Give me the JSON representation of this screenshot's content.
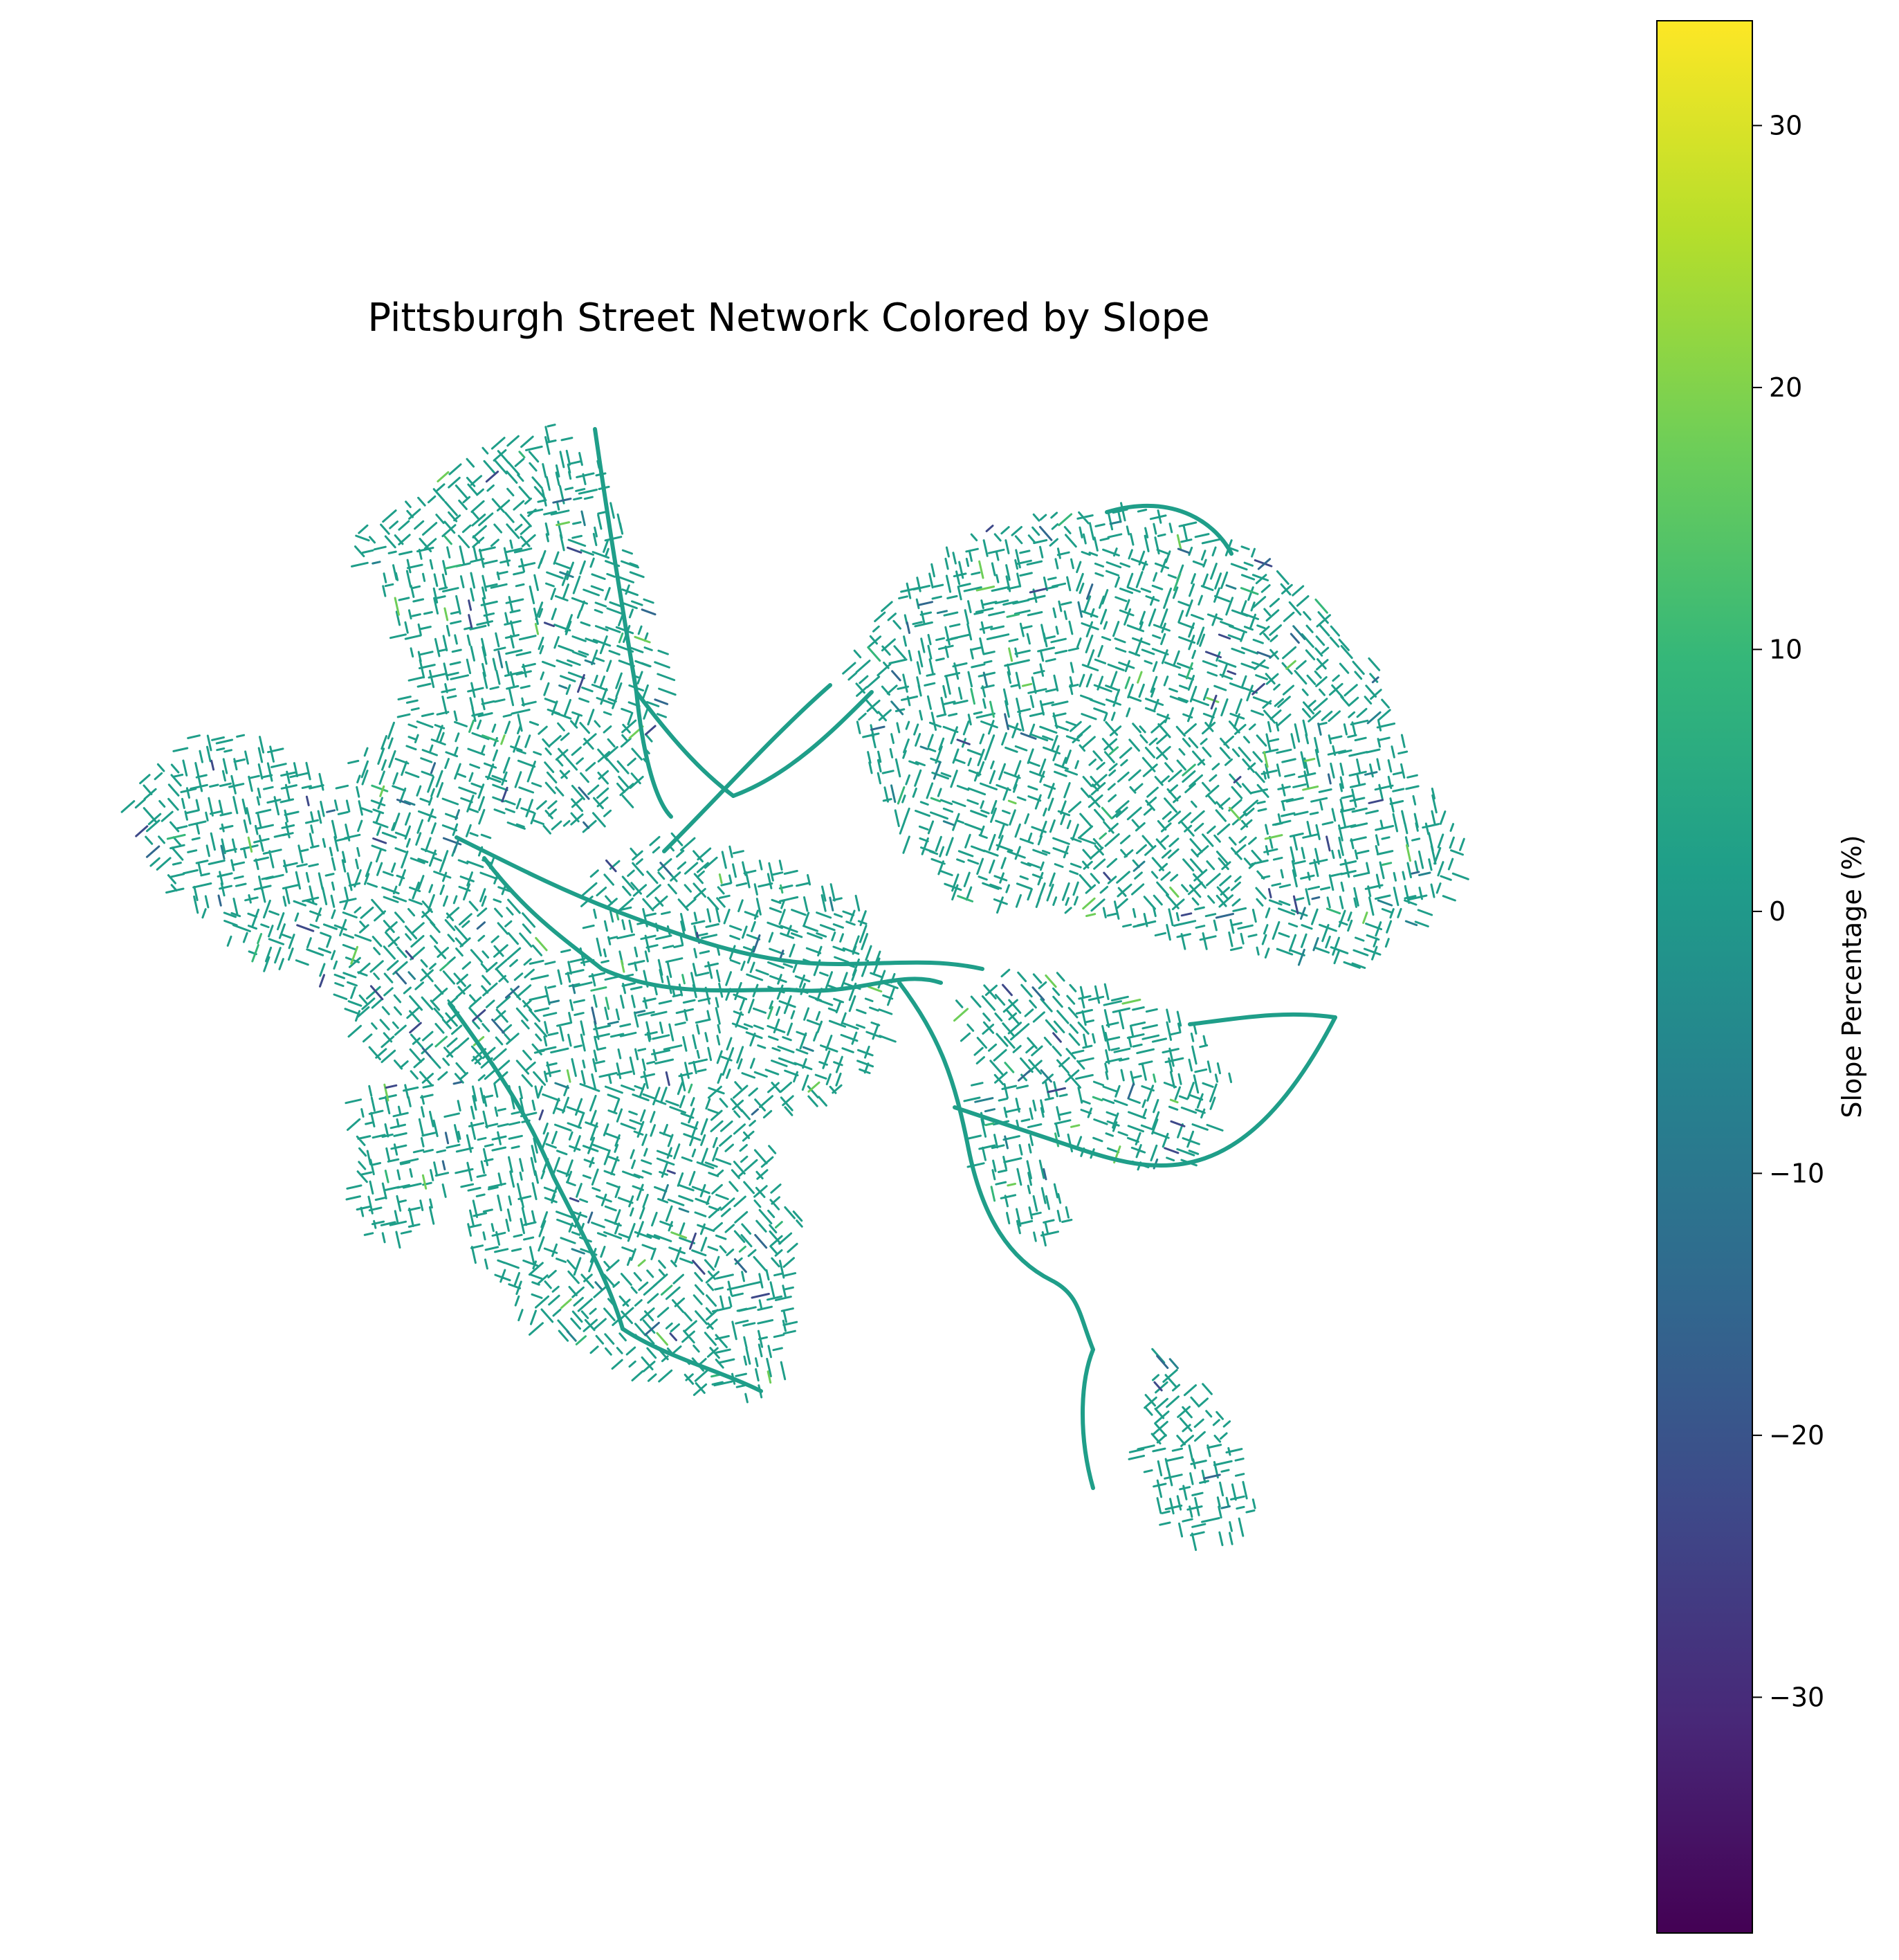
{
  "figure": {
    "title": "Pittsburgh Street Network Colored by Slope"
  },
  "colorbar": {
    "label": "Slope Percentage (%)",
    "colormap": "viridis",
    "range": [
      -39,
      34
    ],
    "ticks": [
      {
        "value": 30,
        "label": "30"
      },
      {
        "value": 20,
        "label": "20"
      },
      {
        "value": 10,
        "label": "10"
      },
      {
        "value": 0,
        "label": "0"
      },
      {
        "value": -10,
        "label": "−10"
      },
      {
        "value": -20,
        "label": "−20"
      },
      {
        "value": -30,
        "label": "−30"
      }
    ],
    "stops": [
      "#440154",
      "#482878",
      "#3e4989",
      "#31688e",
      "#26828e",
      "#1f9e89",
      "#35b779",
      "#6ece58",
      "#b5de2b",
      "#fde725"
    ]
  },
  "map": {
    "dominant_street_color": "#1f9e89",
    "accent_colors": [
      "#35b779",
      "#6ece58",
      "#3e4989",
      "#31688e",
      "#26828e"
    ]
  }
}
